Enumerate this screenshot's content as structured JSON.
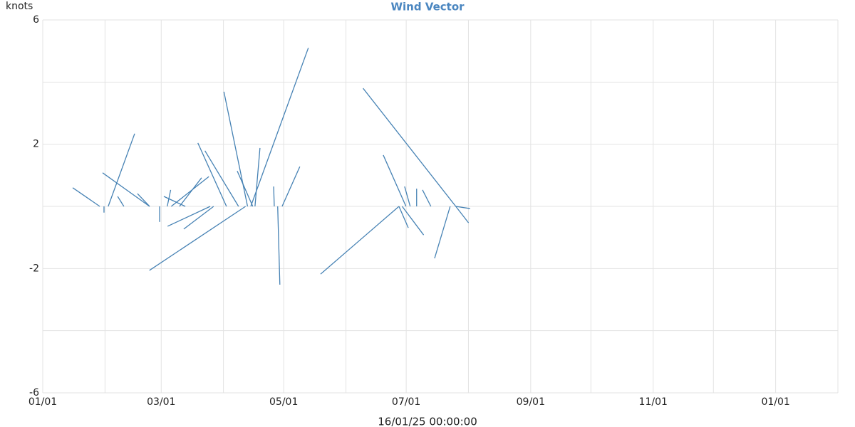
{
  "chart_data": {
    "type": "vector",
    "title": "Wind Vector",
    "y_label": "knots",
    "x_label": "16/01/25 00:00:00",
    "color": "#4682b4",
    "grid": true,
    "xlim": [
      0,
      396
    ],
    "xticks": [
      {
        "value": 0,
        "label": "01/01"
      },
      {
        "value": 59,
        "label": "03/01"
      },
      {
        "value": 120,
        "label": "05/01"
      },
      {
        "value": 181,
        "label": "07/01"
      },
      {
        "value": 243,
        "label": "09/01"
      },
      {
        "value": 304,
        "label": "11/01"
      },
      {
        "value": 365,
        "label": "01/01"
      }
    ],
    "xgrid": [
      0,
      31,
      59,
      90,
      120,
      151,
      181,
      212,
      243,
      273,
      304,
      334,
      365,
      396
    ],
    "ylim": [
      -6,
      6
    ],
    "yticks": [
      6,
      2,
      -2,
      -6
    ],
    "ygrid": [
      6,
      4,
      2,
      0,
      -2,
      -4,
      -6
    ],
    "x": [
      28.4,
      30.5,
      32.6,
      53.2,
      40.4,
      101,
      58.2,
      83.4,
      64,
      91.5,
      97.5,
      102,
      104.6,
      105.7,
      103.6,
      115.3,
      117,
      119.2,
      177.4,
      205.7,
      180.9,
      177.4,
      179,
      183,
      186.2,
      193.3,
      202.9,
      205.7,
      205.7,
      85.1,
      68.1,
      71,
      53.2,
      62
    ],
    "u": [
      -0.87,
      0,
      0.85,
      -1.51,
      -0.2,
      -3.09,
      0,
      -1.37,
      1.21,
      -0.92,
      -1.08,
      -0.76,
      -0.5,
      0.16,
      1.85,
      -0.02,
      0.07,
      0.57,
      -2.52,
      -2.98,
      -0.73,
      0.3,
      0.69,
      -0.18,
      0,
      -0.27,
      -0.5,
      0.41,
      0.46,
      -0.96,
      0.71,
      -0.69,
      -0.39,
      0.11
    ],
    "v": [
      0.6,
      -0.2,
      2.34,
      1.08,
      0.32,
      -2.06,
      -0.5,
      -0.64,
      0.96,
      2.04,
      1.79,
      3.69,
      1.14,
      1.88,
      5.1,
      0.64,
      -2.52,
      1.28,
      -2.18,
      3.8,
      1.65,
      -0.69,
      -0.92,
      0.64,
      0.57,
      0.53,
      -1.67,
      -0.53,
      -0.07,
      -0.73,
      0.92,
      0.32,
      0.41,
      0.53
    ]
  }
}
